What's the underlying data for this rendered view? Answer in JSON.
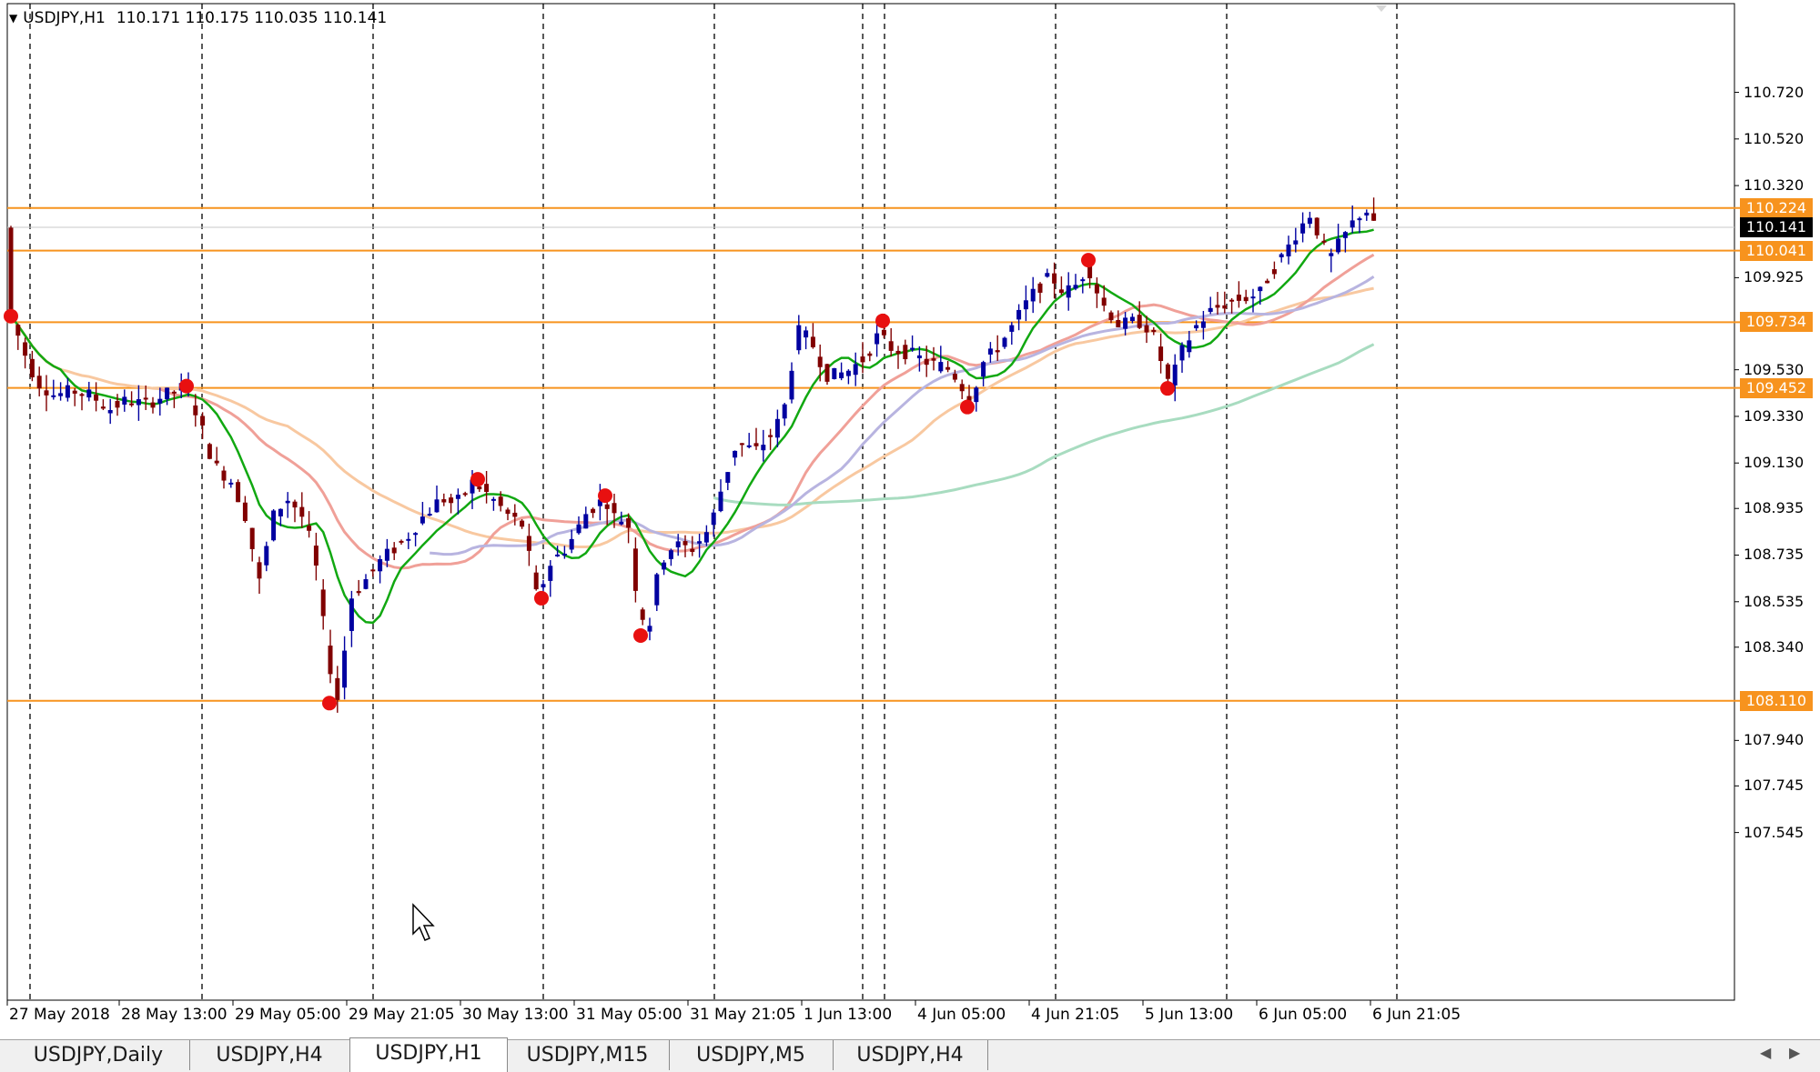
{
  "window": {
    "symbol_line": {
      "dropdown_icon": "triangle-down",
      "symbol": "USDJPY,H1",
      "ohlc": "110.171 110.175 110.035 110.141"
    }
  },
  "price_axis": {
    "ticks": [
      "110.720",
      "110.520",
      "110.320",
      "109.925",
      "109.530",
      "109.330",
      "109.130",
      "108.935",
      "108.735",
      "108.535",
      "108.340",
      "107.940",
      "107.745",
      "107.545"
    ]
  },
  "time_axis": {
    "labels": [
      "27 May 2018",
      "28 May 13:00",
      "29 May 05:00",
      "29 May 21:05",
      "30 May 13:00",
      "31 May 05:00",
      "31 May 21:05",
      "1 Jun 13:00",
      "4 Jun 05:00",
      "4 Jun 21:05",
      "5 Jun 13:00",
      "6 Jun 05:00",
      "6 Jun 21:05"
    ]
  },
  "levels": [
    {
      "label": "110.224",
      "color": "#f7931e"
    },
    {
      "label": "110.041",
      "color": "#f7931e"
    },
    {
      "label": "109.734",
      "color": "#f7931e"
    },
    {
      "label": "109.452",
      "color": "#f7931e"
    },
    {
      "label": "108.110",
      "color": "#f7931e"
    }
  ],
  "current_price": {
    "label": "110.141",
    "color": "#000000"
  },
  "colors": {
    "bull_candle": "#0000a0",
    "bear_candle": "#800000",
    "fractal_dot": "#e81010",
    "ma_fast": "#11a811",
    "ma_slow": "#b8b4e0",
    "ma_long": "#a8dcc0",
    "ma_red": "#f0a098",
    "ma_orange": "#f8c8a0"
  },
  "tabs": [
    {
      "label": "USDJPY,Daily",
      "active": false
    },
    {
      "label": "USDJPY,H4",
      "active": false
    },
    {
      "label": "USDJPY,H1",
      "active": true
    },
    {
      "label": "USDJPY,M15",
      "active": false
    },
    {
      "label": "USDJPY,M5",
      "active": false
    },
    {
      "label": "USDJPY,H4",
      "active": false
    }
  ],
  "tab_scroll": {
    "left_icon": "chevron-left",
    "right_icon": "chevron-right"
  }
}
